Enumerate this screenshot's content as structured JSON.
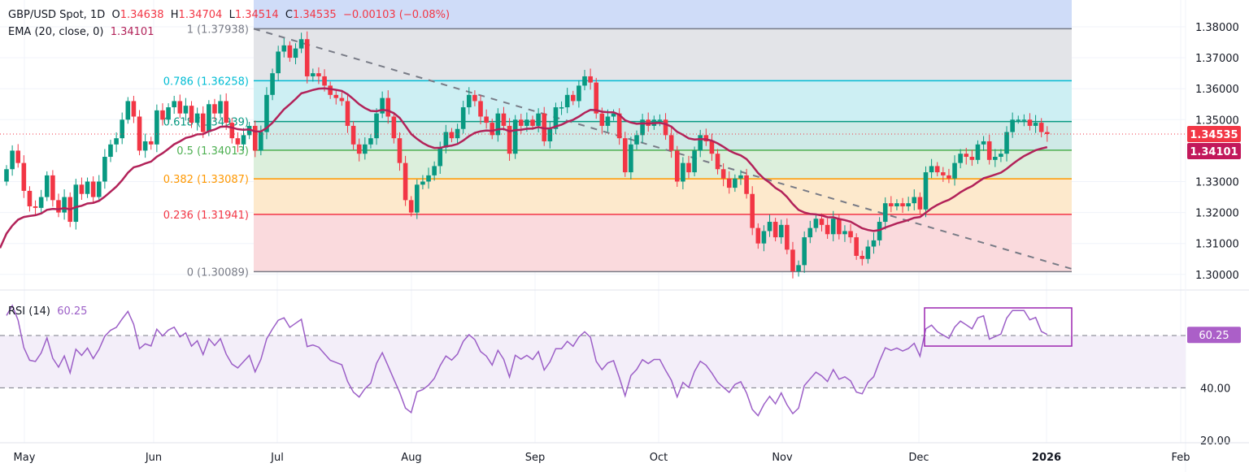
{
  "legend": {
    "symbol": "GBP/USD Spot, 1D",
    "open_label": "O",
    "open": "1.34638",
    "high_label": "H",
    "high": "1.34704",
    "low_label": "L",
    "low": "1.34514",
    "close_label": "C",
    "close": "1.34535",
    "change": "−0.00103 (−0.08%)",
    "ema_label": "EMA (20, close, 0)",
    "ema_value": "1.34101",
    "rsi_label": "RSI (14)",
    "rsi_value": "60.25"
  },
  "colors": {
    "up": "#089981",
    "down": "#f23645",
    "ema": "#b22259",
    "rsi": "#9c5fc7",
    "price_badge": "#f23645",
    "ema_badge": "#c2185b",
    "rsi_badge": "#ab5fc8"
  },
  "chart_data": [
    {
      "type": "candlestick",
      "title": "GBP/USD Spot, 1D",
      "ylim": [
        1.295,
        1.3875
      ],
      "y_ticks": [
        "1.38000",
        "1.37000",
        "1.36000",
        "1.35000",
        "1.33000",
        "1.32000",
        "1.31000",
        "1.30000"
      ],
      "x_ticks": [
        "May",
        "Jun",
        "Jul",
        "Aug",
        "Sep",
        "Oct",
        "Nov",
        "Dec",
        "2026",
        "Feb"
      ],
      "grid": true,
      "last_price_badge": "1.34535",
      "ema_badge": "1.34101",
      "close": [
        1.334,
        1.34,
        1.336,
        1.327,
        1.322,
        1.3215,
        1.325,
        1.332,
        1.324,
        1.32,
        1.325,
        1.317,
        1.329,
        1.326,
        1.33,
        1.325,
        1.33,
        1.338,
        1.342,
        1.344,
        1.35,
        1.356,
        1.351,
        1.34,
        1.343,
        1.342,
        1.353,
        1.35,
        1.354,
        1.356,
        1.352,
        1.3545,
        1.349,
        1.352,
        1.346,
        1.355,
        1.352,
        1.356,
        1.349,
        1.344,
        1.342,
        1.345,
        1.348,
        1.34,
        1.346,
        1.358,
        1.365,
        1.372,
        1.374,
        1.37,
        1.373,
        1.376,
        1.364,
        1.365,
        1.364,
        1.361,
        1.358,
        1.357,
        1.356,
        1.348,
        1.342,
        1.339,
        1.342,
        1.344,
        1.352,
        1.357,
        1.351,
        1.344,
        1.336,
        1.324,
        1.32,
        1.329,
        1.33,
        1.332,
        1.335,
        1.341,
        1.346,
        1.344,
        1.347,
        1.354,
        1.358,
        1.356,
        1.351,
        1.349,
        1.345,
        1.352,
        1.348,
        1.339,
        1.35,
        1.348,
        1.35,
        1.348,
        1.352,
        1.343,
        1.347,
        1.354,
        1.354,
        1.358,
        1.356,
        1.361,
        1.364,
        1.362,
        1.352,
        1.348,
        1.351,
        1.352,
        1.344,
        1.333,
        1.342,
        1.345,
        1.35,
        1.348,
        1.35,
        1.35,
        1.345,
        1.34,
        1.33,
        1.336,
        1.333,
        1.34,
        1.345,
        1.343,
        1.339,
        1.334,
        1.331,
        1.328,
        1.331,
        1.332,
        1.326,
        1.315,
        1.31,
        1.314,
        1.317,
        1.312,
        1.316,
        1.308,
        1.301,
        1.303,
        1.312,
        1.315,
        1.318,
        1.316,
        1.313,
        1.318,
        1.313,
        1.314,
        1.312,
        1.306,
        1.305,
        1.309,
        1.311,
        1.317,
        1.323,
        1.322,
        1.323,
        1.322,
        1.323,
        1.325,
        1.321,
        1.333,
        1.335,
        1.333,
        1.332,
        1.331,
        1.336,
        1.339,
        1.338,
        1.337,
        1.342,
        1.343,
        1.337,
        1.338,
        1.339,
        1.346,
        1.35,
        1.35,
        1.35,
        1.348,
        1.349,
        1.346,
        1.34535
      ],
      "fibonacci": [
        {
          "ratio": "1",
          "price": 1.37938,
          "label": "1 (1.37938)",
          "line": "#787b86",
          "fill": "#e3e4e8"
        },
        {
          "ratio": "0.786",
          "price": 1.36258,
          "label": "0.786 (1.36258)",
          "line": "#00bcd4",
          "fill": "#cdeff3"
        },
        {
          "ratio": "0.618",
          "price": 1.34939,
          "label": "0.618 (1.34939)",
          "line": "#089981",
          "fill": "#cfeae7"
        },
        {
          "ratio": "0.5",
          "price": 1.34013,
          "label": "0.5 (1.34013)",
          "line": "#4caf50",
          "fill": "#dcefdc"
        },
        {
          "ratio": "0.382",
          "price": 1.33087,
          "label": "0.382 (1.33087)",
          "line": "#ff9800",
          "fill": "#fde9cc"
        },
        {
          "ratio": "0.236",
          "price": 1.31941,
          "label": "0.236 (1.31941)",
          "line": "#f23645",
          "fill": "#fadadd"
        },
        {
          "ratio": "0",
          "price": 1.30089,
          "label": "0 (1.30089)",
          "line": "#787b86",
          "fill": null
        }
      ],
      "trendline": {
        "from_price": 1.37938,
        "to_price": 1.3018,
        "style": "dashed"
      }
    },
    {
      "type": "line",
      "title": "RSI (14)",
      "ylim": [
        15,
        80
      ],
      "y_ticks": [
        "40.00",
        "20.00"
      ],
      "levels": [
        60,
        40
      ],
      "last_value_badge": "60.25",
      "highlight_box": true
    }
  ]
}
